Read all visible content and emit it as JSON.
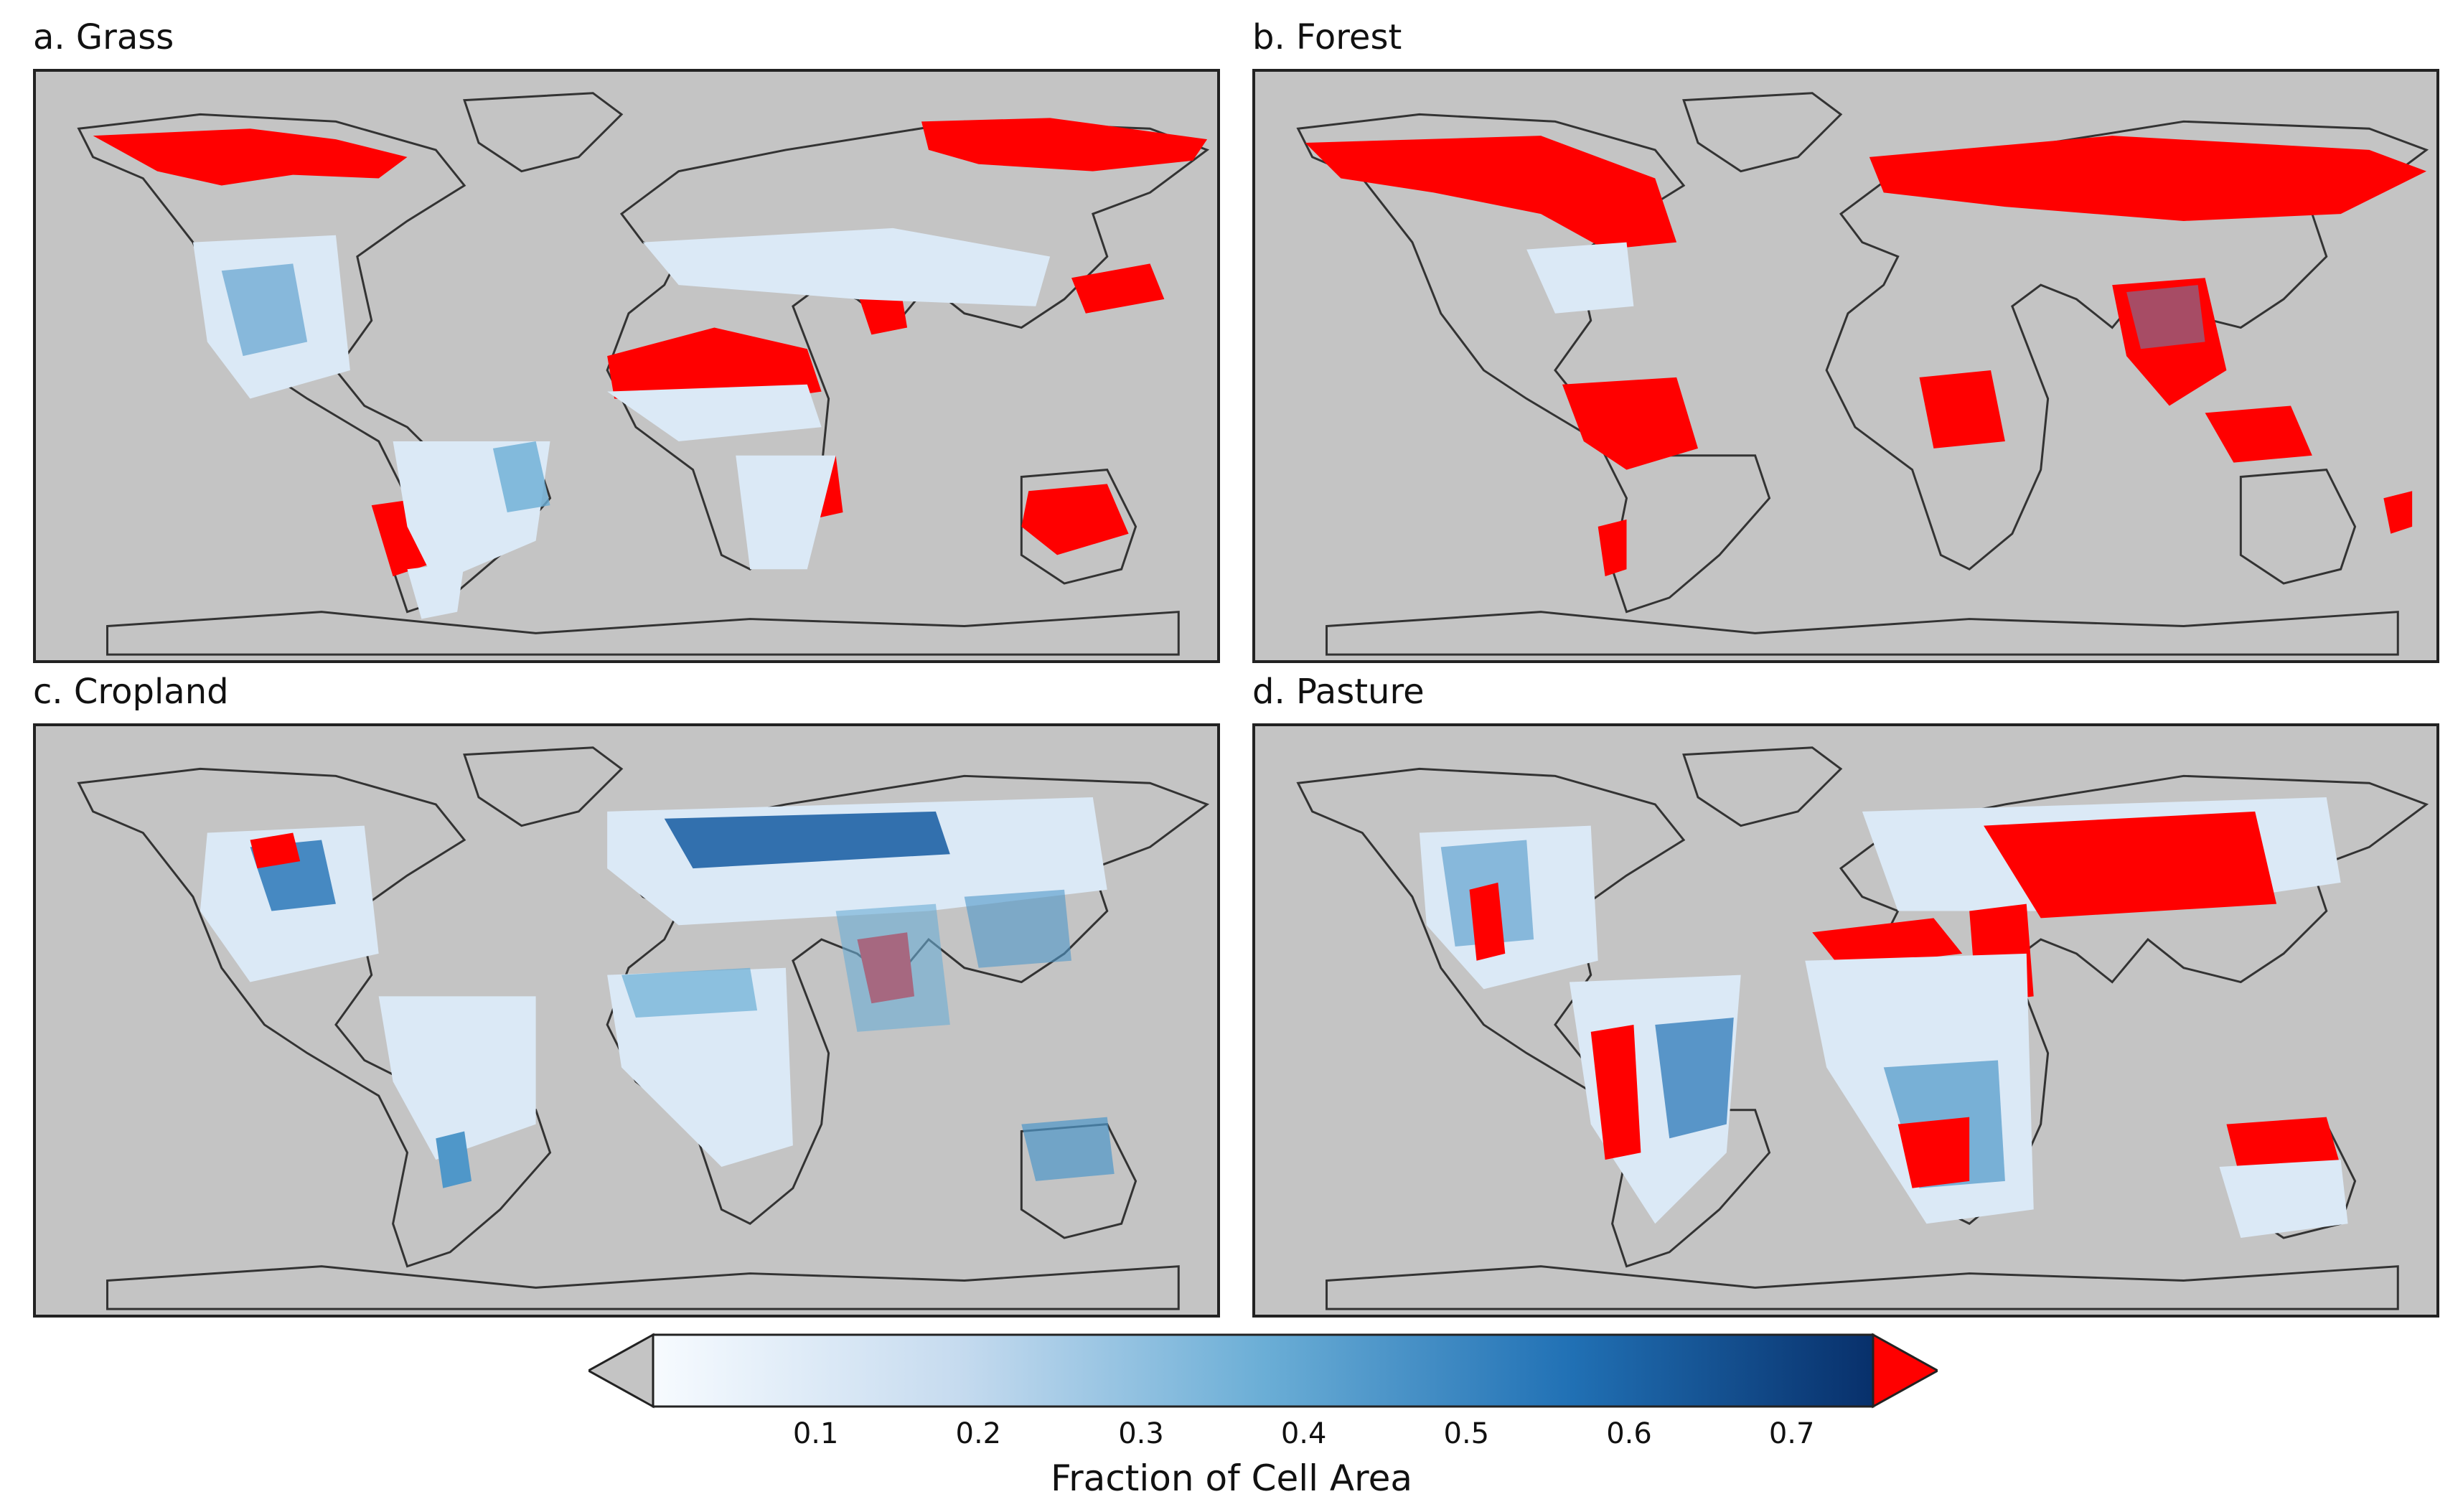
{
  "panels": [
    {
      "title": "a. Grass",
      "class": "grass"
    },
    {
      "title": "b. Forest",
      "class": "forest"
    },
    {
      "title": "c. Cropland",
      "class": "cropland"
    },
    {
      "title": "d. Pasture",
      "class": "pasture"
    }
  ],
  "colorbar": {
    "label": "Fraction of Cell Area",
    "min": 0.0,
    "max": 0.75,
    "ticks": [
      "0.1",
      "0.2",
      "0.3",
      "0.4",
      "0.5",
      "0.6",
      "0.7"
    ],
    "tick_values": [
      0.1,
      0.2,
      0.3,
      0.4,
      0.5,
      0.6,
      0.7
    ],
    "colors": {
      "under": "#c4c4c4",
      "low": "#f7fbff",
      "mid": "#6baed6",
      "high": "#08306b",
      "over": "#ff0000",
      "land_bg": "#c4c4c4",
      "coastline": "#333333"
    }
  },
  "legend_position": "bottom-center"
}
